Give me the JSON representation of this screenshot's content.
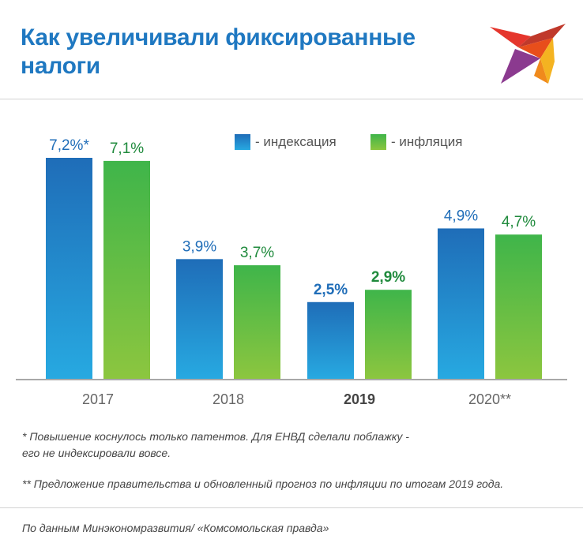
{
  "title": "Как увеличивали фиксированные налоги",
  "logo": {
    "icon": "bird-logo",
    "colors": [
      "#e5362d",
      "#f4b321",
      "#8b3a8f",
      "#c0392b"
    ]
  },
  "legend": {
    "indexation_label": "- индексация",
    "inflation_label": "- инфляция"
  },
  "colors": {
    "title": "#1f78c1",
    "indexation_top": "#1f6db8",
    "indexation_bottom": "#27a9e1",
    "inflation_top": "#3fb54a",
    "inflation_bottom": "#8cc63f",
    "indexation_label": "#1f6db8",
    "inflation_label": "#1f8a3c"
  },
  "chart_data": {
    "type": "bar",
    "title": "Как увеличивали фиксированные налоги",
    "categories": [
      "2017",
      "2018",
      "2019",
      "2020**"
    ],
    "category_bold": [
      false,
      false,
      true,
      false
    ],
    "series": [
      {
        "name": "- индексация",
        "values": [
          7.2,
          3.9,
          2.5,
          4.9
        ],
        "labels": [
          "7,2%*",
          "3,9%",
          "2,5%",
          "4,9%"
        ],
        "label_bold": [
          false,
          false,
          true,
          false
        ]
      },
      {
        "name": "- инфляция",
        "values": [
          7.1,
          3.7,
          2.9,
          4.7
        ],
        "labels": [
          "7,1%",
          "3,7%",
          "2,9%",
          "4,7%"
        ],
        "label_bold": [
          false,
          false,
          true,
          false
        ]
      }
    ],
    "ylim": [
      0,
      7.2
    ],
    "grid": false,
    "legend_position": "top-right"
  },
  "notes": {
    "footnote1_line1": "* Повышение коснулось только патентов. Для ЕНВД сделали поблажку -",
    "footnote1_line2": "его не индексировали вовсе.",
    "footnote2": "** Предложение правительства и обновленный прогноз по инфляции по итогам 2019 года.",
    "source": "По данным Минэкономразвития/ «Комсомольская правда»"
  }
}
